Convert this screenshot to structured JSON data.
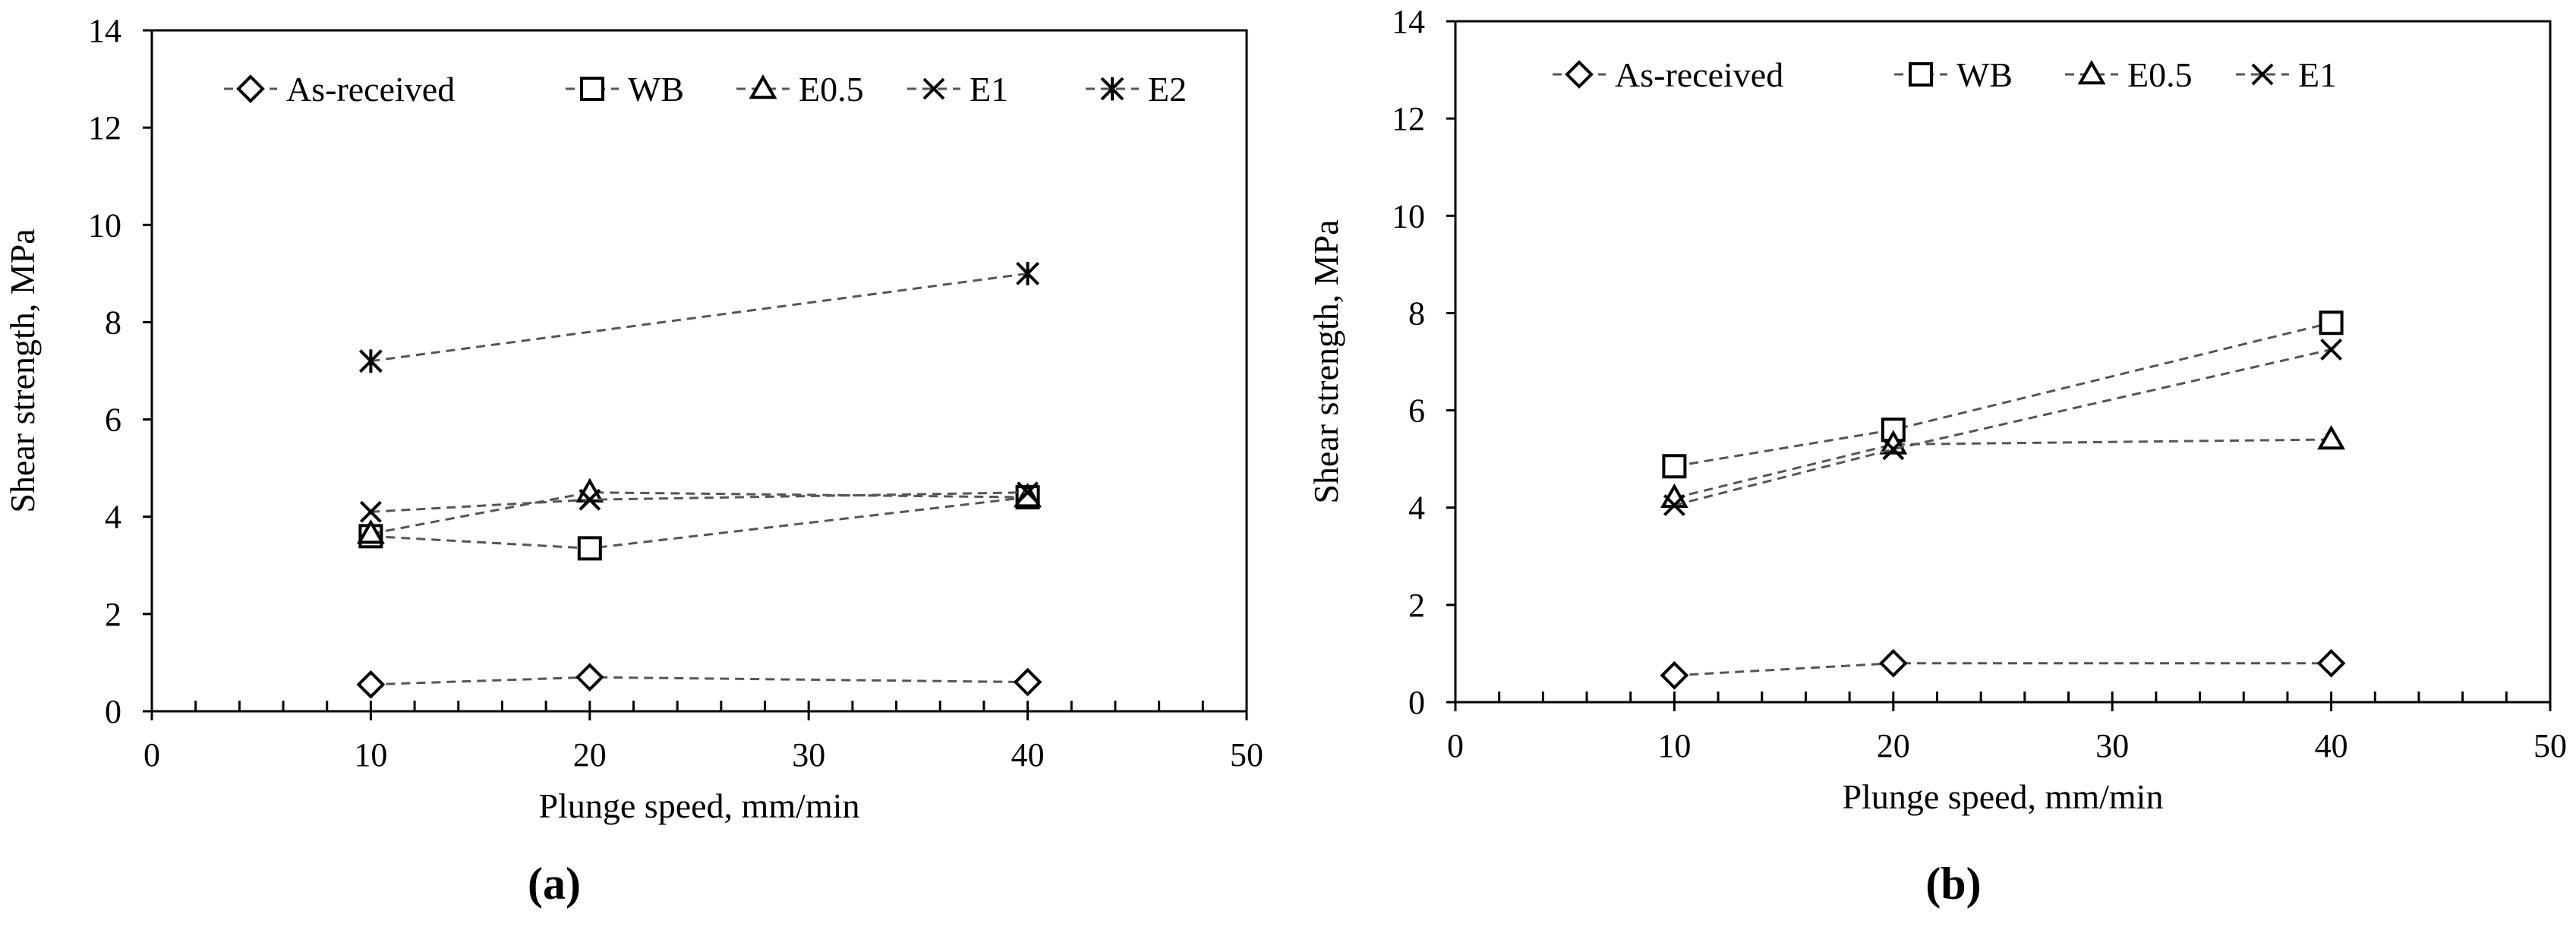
{
  "figure": {
    "captions": [
      "(a)",
      "(b)"
    ]
  },
  "chart_data": [
    {
      "type": "line",
      "panel": "(a)",
      "xlabel": "Plunge speed, mm/min",
      "ylabel": "Shear strength, MPa",
      "xlim": [
        0,
        50
      ],
      "ylim": [
        0,
        14
      ],
      "xticks": [
        0,
        10,
        20,
        30,
        40,
        50
      ],
      "yticks": [
        0,
        2,
        4,
        6,
        8,
        10,
        12,
        14
      ],
      "grid": false,
      "legend": "top",
      "series": [
        {
          "name": "As-received",
          "marker": "diamond",
          "x": [
            10,
            20,
            40
          ],
          "y": [
            0.55,
            0.7,
            0.6
          ]
        },
        {
          "name": "WB",
          "marker": "square",
          "x": [
            10,
            20,
            40
          ],
          "y": [
            3.6,
            3.35,
            4.4
          ]
        },
        {
          "name": "E0.5",
          "marker": "triangle",
          "x": [
            10,
            20,
            40
          ],
          "y": [
            3.65,
            4.5,
            4.4
          ]
        },
        {
          "name": "E1",
          "marker": "x",
          "x": [
            10,
            20,
            40
          ],
          "y": [
            4.1,
            4.35,
            4.5
          ]
        },
        {
          "name": "E2",
          "marker": "asterisk",
          "x": [
            10,
            40
          ],
          "y": [
            7.2,
            9.0
          ]
        }
      ]
    },
    {
      "type": "line",
      "panel": "(b)",
      "xlabel": "Plunge speed, mm/min",
      "ylabel": "Shear strength, MPa",
      "xlim": [
        0,
        50
      ],
      "ylim": [
        0,
        14
      ],
      "xticks": [
        0,
        10,
        20,
        30,
        40,
        50
      ],
      "yticks": [
        0,
        2,
        4,
        6,
        8,
        10,
        12,
        14
      ],
      "grid": false,
      "legend": "top",
      "series": [
        {
          "name": "As-received",
          "marker": "diamond",
          "x": [
            10,
            20,
            40
          ],
          "y": [
            0.55,
            0.8,
            0.8
          ]
        },
        {
          "name": "WB",
          "marker": "square",
          "x": [
            10,
            20,
            40
          ],
          "y": [
            4.85,
            5.6,
            7.8
          ]
        },
        {
          "name": "E0.5",
          "marker": "triangle",
          "x": [
            10,
            20,
            40
          ],
          "y": [
            4.2,
            5.3,
            5.4
          ]
        },
        {
          "name": "E1",
          "marker": "x",
          "x": [
            10,
            20,
            40
          ],
          "y": [
            4.05,
            5.2,
            7.25
          ]
        }
      ]
    }
  ]
}
